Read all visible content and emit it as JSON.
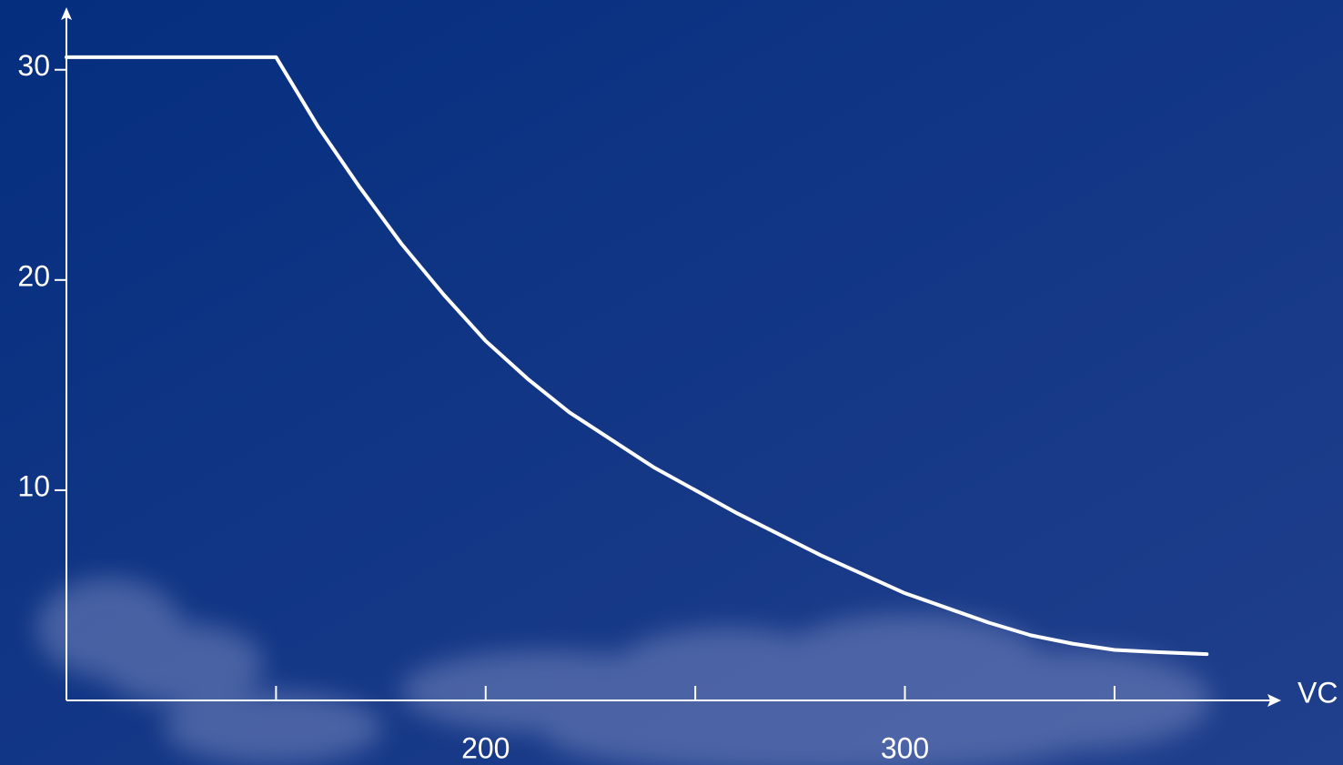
{
  "chart_data": {
    "type": "line",
    "x_label": "VC",
    "x": [
      100,
      150,
      160,
      170,
      180,
      190,
      200,
      210,
      220,
      230,
      240,
      250,
      260,
      270,
      280,
      290,
      300,
      310,
      320,
      330,
      340,
      350,
      360,
      372
    ],
    "series": [
      {
        "color": "#ffffff",
        "values": [
          30.6,
          30.6,
          27.3,
          24.4,
          21.7,
          19.3,
          17.1,
          15.3,
          13.7,
          12.4,
          11.1,
          10.0,
          8.9,
          7.9,
          6.9,
          6.0,
          5.1,
          4.4,
          3.7,
          3.1,
          2.7,
          2.4,
          2.3,
          2.2
        ]
      }
    ],
    "xlim": [
      100,
      388
    ],
    "ylim": [
      0,
      32.8
    ],
    "xticks": [
      200,
      300
    ],
    "x_minor_ticks": [
      150,
      250,
      350
    ],
    "yticks": [
      10,
      20,
      30
    ],
    "grid": false
  }
}
